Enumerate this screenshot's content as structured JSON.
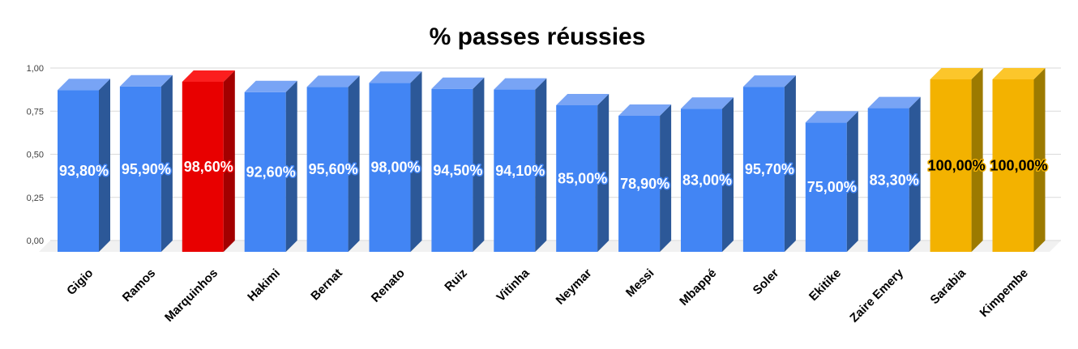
{
  "chart_data": {
    "type": "bar",
    "style": "3d-column",
    "title": "% passes réussies",
    "xlabel": "",
    "ylabel": "",
    "legend": "none",
    "grid": true,
    "ylim": [
      0,
      1
    ],
    "y_tick_labels": [
      "0,00",
      "0,25",
      "0,50",
      "0,75",
      "1,00"
    ],
    "y_tick_values": [
      0,
      0.25,
      0.5,
      0.75,
      1
    ],
    "categories": [
      "Gigio",
      "Ramos",
      "Marquinhos",
      "Hakimi",
      "Bernat",
      "Renato",
      "Ruiz",
      "Vitinha",
      "Neymar",
      "Messi",
      "Mbappé",
      "Soler",
      "Ekitike",
      "Zaire Emery",
      "Sarabia",
      "Kimpembe"
    ],
    "values": [
      0.938,
      0.959,
      0.986,
      0.926,
      0.956,
      0.98,
      0.945,
      0.941,
      0.85,
      0.789,
      0.83,
      0.957,
      0.75,
      0.833,
      1.0,
      1.0
    ],
    "value_labels": [
      "93,80%",
      "95,90%",
      "98,60%",
      "92,60%",
      "95,60%",
      "98,00%",
      "94,50%",
      "94,10%",
      "85,00%",
      "78,90%",
      "83,00%",
      "95,70%",
      "75,00%",
      "83,30%",
      "100,00%",
      "100,00%"
    ],
    "colors": [
      "blue",
      "blue",
      "red",
      "blue",
      "blue",
      "blue",
      "blue",
      "blue",
      "blue",
      "blue",
      "blue",
      "blue",
      "blue",
      "blue",
      "yellow",
      "yellow"
    ],
    "palette": {
      "blue": {
        "front": "#4285F4",
        "top": "#78A4F5",
        "side": "#2C5898",
        "label_fill": "#FFFFFF",
        "label_stroke": "#4285F4"
      },
      "red": {
        "front": "#E80000",
        "top": "#FB1E1E",
        "side": "#A30000",
        "label_fill": "#FFFFFF",
        "label_stroke": "#E80000"
      },
      "yellow": {
        "front": "#F3B200",
        "top": "#FCC62B",
        "side": "#9C7A00",
        "label_fill": "#000000",
        "label_stroke": "#F3B200"
      }
    },
    "grid_color": "#DADADA",
    "floor_color": "#F1F1F1",
    "axis_text_color": "#404040",
    "x_label_color": "#000000",
    "title_color": "#000000"
  }
}
